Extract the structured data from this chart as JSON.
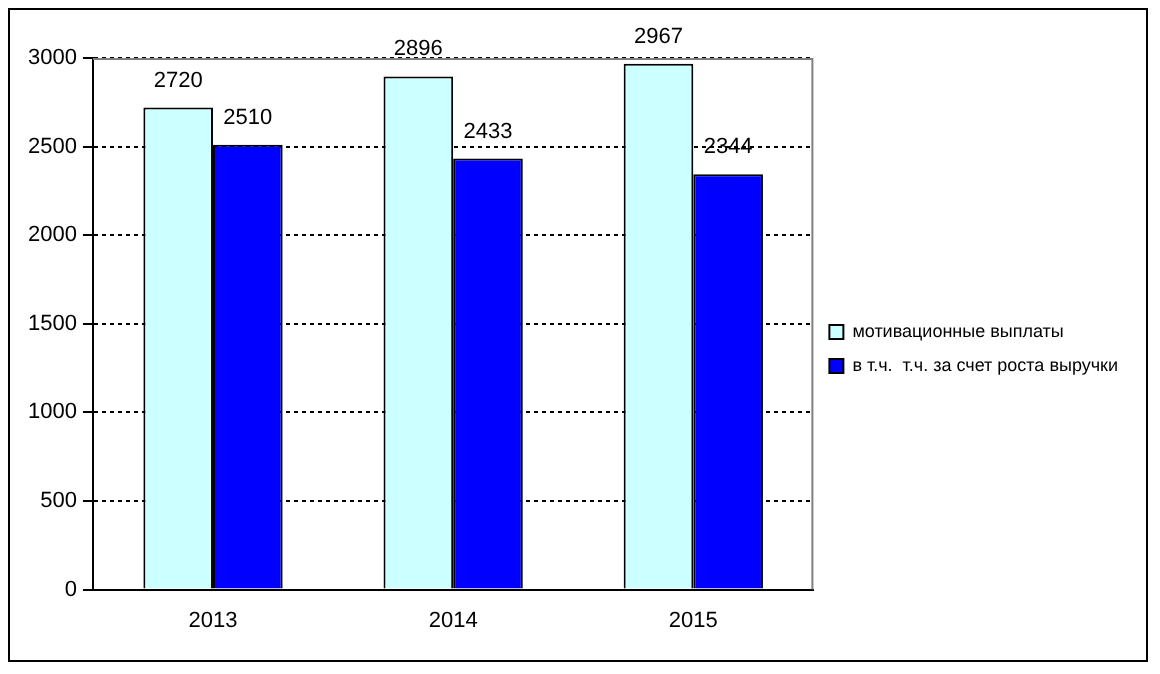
{
  "chart_data": {
    "type": "bar",
    "categories": [
      "2013",
      "2014",
      "2015"
    ],
    "series": [
      {
        "name": "мотивационные выплаты",
        "color": "#ccffff",
        "values": [
          2720,
          2896,
          2967
        ]
      },
      {
        "name": "в т.ч.  т.ч. за счет роста выручки",
        "color": "#0000ff",
        "values": [
          2510,
          2433,
          2344
        ]
      }
    ],
    "ylim": [
      0,
      3000
    ],
    "yticks": [
      0,
      500,
      1000,
      1500,
      2000,
      2500,
      3000
    ],
    "grid": "y",
    "legend": "right",
    "data_labels": true
  }
}
